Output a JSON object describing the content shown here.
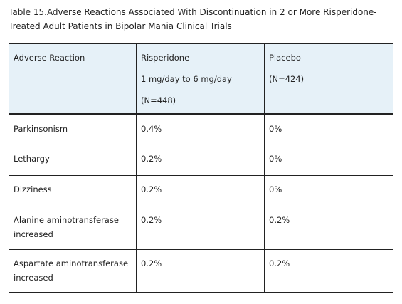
{
  "caption": {
    "label": "Table 15.",
    "title": "Adverse Reactions Associated With Discontinuation in 2 or More Risperidone-Treated Adult Patients in Bipolar Mania Clinical Trials"
  },
  "header": {
    "col1": "Adverse Reaction",
    "col2": {
      "name": "Risperidone",
      "dose": "1 mg/day to 6 mg/day",
      "n": "(N=448)"
    },
    "col3": {
      "name": "Placebo",
      "n": "(N=424)"
    }
  },
  "rows": [
    {
      "reaction": "Parkinsonism",
      "risperidone": "0.4%",
      "placebo": "0%"
    },
    {
      "reaction": "Lethargy",
      "risperidone": "0.2%",
      "placebo": "0%"
    },
    {
      "reaction": "Dizziness",
      "risperidone": "0.2%",
      "placebo": "0%"
    },
    {
      "reaction": "Alanine aminotransferase increased",
      "risperidone": "0.2%",
      "placebo": "0.2%"
    },
    {
      "reaction": "Aspartate aminotransferase increased",
      "risperidone": "0.2%",
      "placebo": "0.2%"
    }
  ]
}
